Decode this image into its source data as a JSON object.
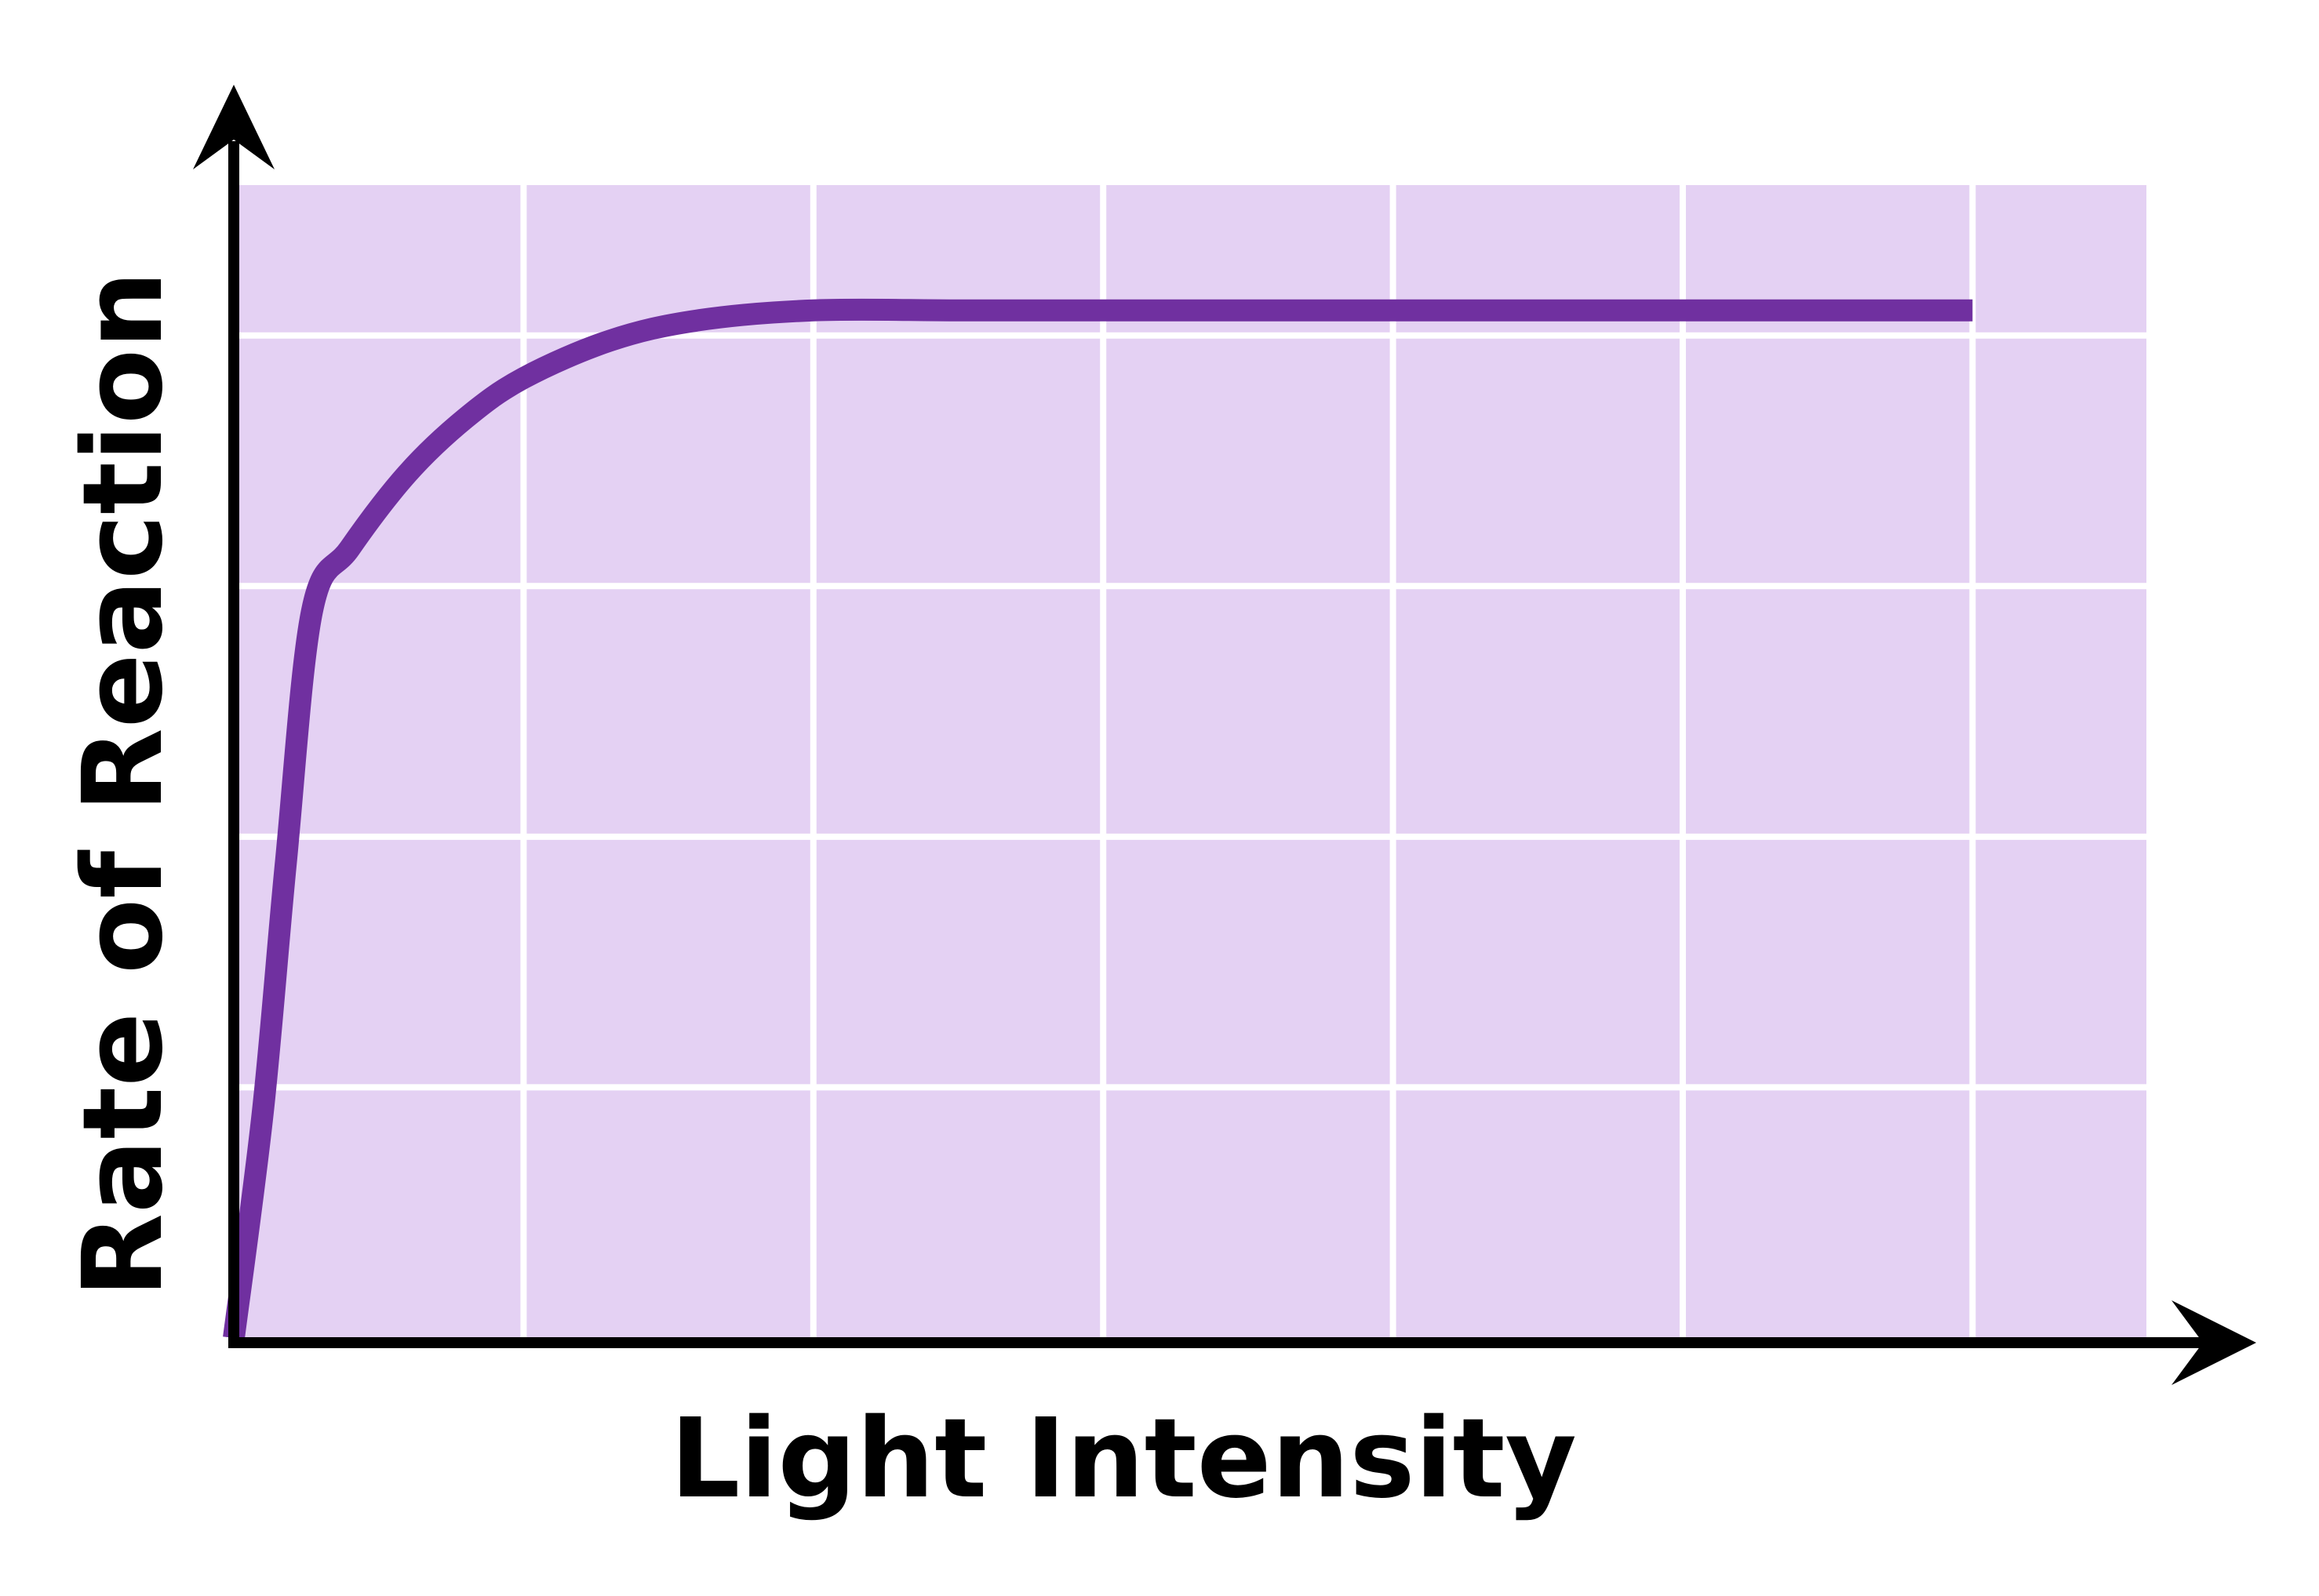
{
  "chart_data": {
    "type": "line",
    "title": "",
    "xlabel": "Light Intensity",
    "ylabel": "Rate of Reaction",
    "grid": true,
    "legend": "none",
    "x_ticks": [],
    "y_ticks": [],
    "xlim": [
      0,
      6.6
    ],
    "ylim": [
      0,
      4.6
    ],
    "colors": {
      "plot_background": "#e4d1f3",
      "grid": "#ffffff",
      "series": "#7030a0",
      "axes": "#000000"
    },
    "series": [
      {
        "name": "",
        "x": [
          0.0,
          0.1,
          0.18,
          0.27,
          0.4,
          0.6,
          0.8,
          1.0,
          1.3,
          1.6,
          2.0,
          2.5,
          3.0,
          3.5,
          4.0,
          4.5,
          5.0,
          5.5,
          6.0
        ],
        "y": [
          0.0,
          0.9,
          1.9,
          2.9,
          3.15,
          3.45,
          3.67,
          3.83,
          3.98,
          4.06,
          4.1,
          4.1,
          4.1,
          4.1,
          4.1,
          4.1,
          4.1,
          4.1,
          4.1
        ]
      }
    ]
  }
}
